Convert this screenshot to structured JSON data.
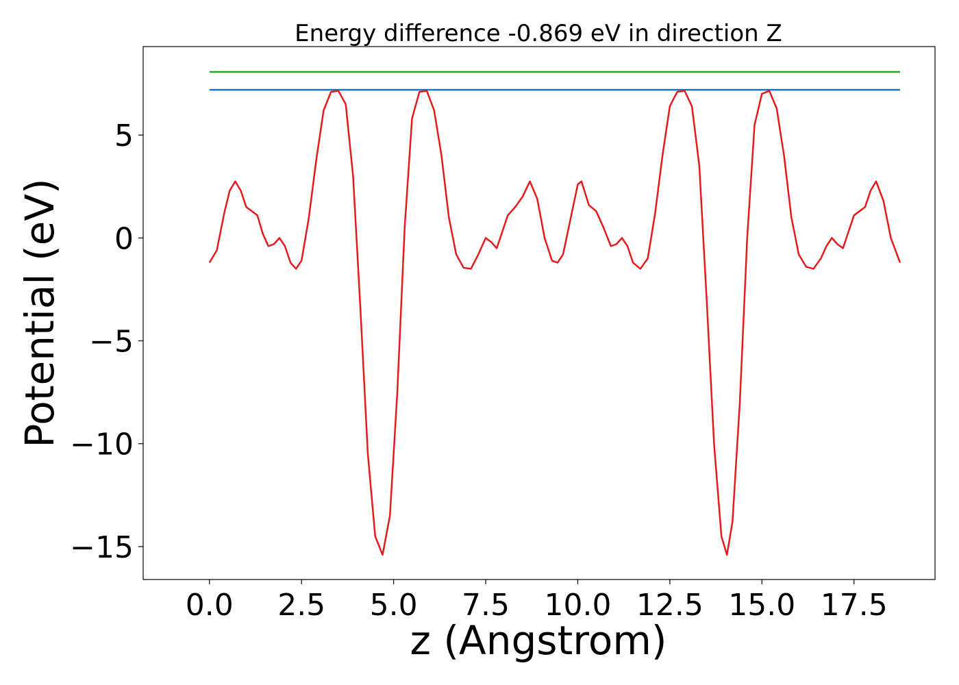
{
  "chart_data": {
    "type": "line",
    "title": "Energy difference -0.869 eV in direction Z",
    "xlabel": "z (Angstrom)",
    "ylabel": "Potential (eV)",
    "xlim": [
      -1.8,
      19.7
    ],
    "ylim": [
      -16.6,
      9.3
    ],
    "xticks": [
      {
        "value": 0.0,
        "label": "0.0"
      },
      {
        "value": 2.5,
        "label": "2.5"
      },
      {
        "value": 5.0,
        "label": "5.0"
      },
      {
        "value": 7.5,
        "label": "7.5"
      },
      {
        "value": 10.0,
        "label": "10.0"
      },
      {
        "value": 12.5,
        "label": "12.5"
      },
      {
        "value": 15.0,
        "label": "15.0"
      },
      {
        "value": 17.5,
        "label": "17.5"
      }
    ],
    "yticks": [
      {
        "value": 5,
        "label": "5"
      },
      {
        "value": 0,
        "label": "0"
      },
      {
        "value": -5,
        "label": "−5"
      },
      {
        "value": -10,
        "label": "−10"
      },
      {
        "value": -15,
        "label": "−15"
      }
    ],
    "grid": false,
    "series": [
      {
        "color": "#2ca02c",
        "x": [
          0.0,
          18.75
        ],
        "y": [
          8.07,
          8.07
        ]
      },
      {
        "color": "#1f77b4",
        "x": [
          0.0,
          18.75
        ],
        "y": [
          7.2,
          7.2
        ]
      },
      {
        "color": "#e41a1c",
        "x": [
          0.0,
          0.2,
          0.4,
          0.55,
          0.7,
          0.85,
          1.0,
          1.15,
          1.3,
          1.45,
          1.6,
          1.75,
          1.9,
          2.05,
          2.2,
          2.35,
          2.5,
          2.7,
          2.9,
          3.1,
          3.3,
          3.5,
          3.7,
          3.9,
          4.1,
          4.3,
          4.5,
          4.7,
          4.9,
          5.1,
          5.3,
          5.5,
          5.7,
          5.9,
          6.1,
          6.3,
          6.5,
          6.7,
          6.9,
          7.1,
          7.3,
          7.5,
          7.65,
          7.8,
          7.95,
          8.1,
          8.3,
          8.5,
          8.7,
          8.9,
          9.1,
          9.3,
          9.45,
          9.6,
          9.8,
          10.0,
          10.1,
          10.3,
          10.5,
          10.7,
          10.9,
          11.05,
          11.2,
          11.35,
          11.5,
          11.7,
          11.9,
          12.1,
          12.3,
          12.5,
          12.7,
          12.9,
          13.1,
          13.3,
          13.5,
          13.7,
          13.9,
          14.05,
          14.2,
          14.4,
          14.6,
          14.8,
          15.0,
          15.2,
          15.4,
          15.6,
          15.8,
          16.0,
          16.2,
          16.4,
          16.6,
          16.75,
          16.9,
          17.05,
          17.2,
          17.35,
          17.5,
          17.65,
          17.8,
          17.95,
          18.1,
          18.3,
          18.5,
          18.75
        ],
        "y": [
          -1.2,
          -0.6,
          1.2,
          2.3,
          2.75,
          2.3,
          1.5,
          1.3,
          1.1,
          0.2,
          -0.4,
          -0.3,
          0.0,
          -0.4,
          -1.2,
          -1.5,
          -1.1,
          1.0,
          3.8,
          6.2,
          7.1,
          7.15,
          6.5,
          3.0,
          -3.5,
          -10.5,
          -14.5,
          -15.4,
          -13.5,
          -7.5,
          0.5,
          5.8,
          7.1,
          7.15,
          6.2,
          4.0,
          1.0,
          -0.8,
          -1.45,
          -1.5,
          -0.8,
          0.0,
          -0.2,
          -0.5,
          0.3,
          1.1,
          1.5,
          2.0,
          2.75,
          1.9,
          0.0,
          -1.1,
          -1.2,
          -0.8,
          0.9,
          2.6,
          2.75,
          1.6,
          1.3,
          0.5,
          -0.4,
          -0.3,
          0.0,
          -0.4,
          -1.2,
          -1.5,
          -1.0,
          1.2,
          4.0,
          6.4,
          7.1,
          7.15,
          6.4,
          3.5,
          -3.0,
          -10.0,
          -14.5,
          -15.4,
          -13.8,
          -8.0,
          0.0,
          5.5,
          7.0,
          7.15,
          6.3,
          4.0,
          1.0,
          -0.8,
          -1.4,
          -1.5,
          -1.0,
          -0.4,
          0.0,
          -0.3,
          -0.5,
          0.3,
          1.1,
          1.3,
          1.5,
          2.3,
          2.75,
          1.8,
          0.0,
          -1.2
        ]
      }
    ]
  }
}
